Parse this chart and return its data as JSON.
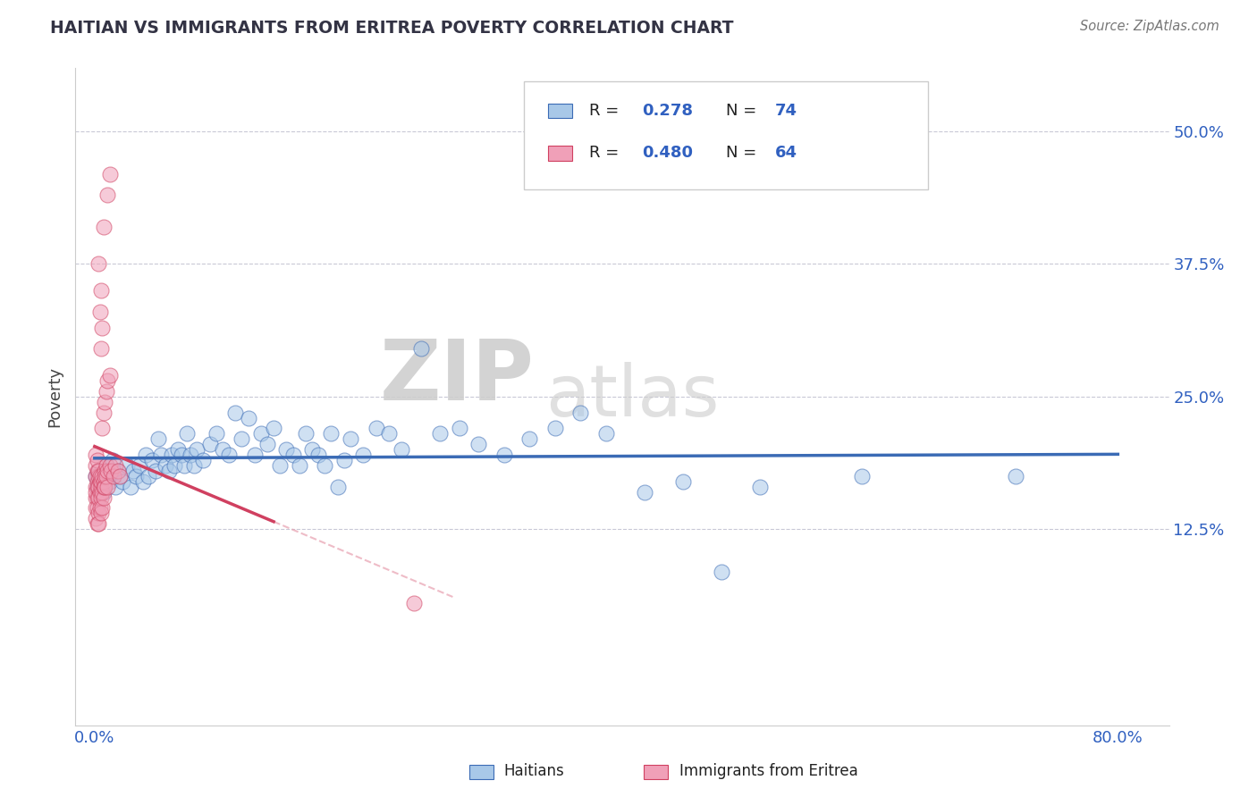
{
  "title": "HAITIAN VS IMMIGRANTS FROM ERITREA POVERTY CORRELATION CHART",
  "source": "Source: ZipAtlas.com",
  "xlabel_ticks": [
    "0.0%",
    "",
    "",
    "",
    "80.0%"
  ],
  "xlabel_tick_vals": [
    0.0,
    0.2,
    0.4,
    0.6,
    0.8
  ],
  "ylabel_ticks": [
    "12.5%",
    "25.0%",
    "37.5%",
    "50.0%"
  ],
  "ylabel_tick_vals": [
    0.125,
    0.25,
    0.375,
    0.5
  ],
  "ylabel": "Poverty",
  "xlim": [
    -0.015,
    0.84
  ],
  "ylim": [
    -0.06,
    0.56
  ],
  "legend_r1": "0.278",
  "legend_n1": "74",
  "legend_r2": "0.480",
  "legend_n2": "64",
  "watermark_zip": "ZIP",
  "watermark_atlas": "atlas",
  "blue_color": "#A8C8E8",
  "pink_color": "#F0A0B8",
  "blue_line_color": "#3B6BB5",
  "pink_line_color": "#D04060",
  "pink_dash_color": "#E8A0B0",
  "blue_scatter": [
    [
      0.001,
      0.175
    ],
    [
      0.002,
      0.165
    ],
    [
      0.003,
      0.18
    ],
    [
      0.005,
      0.17
    ],
    [
      0.007,
      0.16
    ],
    [
      0.009,
      0.185
    ],
    [
      0.01,
      0.175
    ],
    [
      0.012,
      0.17
    ],
    [
      0.014,
      0.19
    ],
    [
      0.016,
      0.165
    ],
    [
      0.018,
      0.18
    ],
    [
      0.02,
      0.175
    ],
    [
      0.022,
      0.17
    ],
    [
      0.025,
      0.185
    ],
    [
      0.028,
      0.165
    ],
    [
      0.03,
      0.18
    ],
    [
      0.032,
      0.175
    ],
    [
      0.035,
      0.185
    ],
    [
      0.038,
      0.17
    ],
    [
      0.04,
      0.195
    ],
    [
      0.042,
      0.175
    ],
    [
      0.045,
      0.19
    ],
    [
      0.048,
      0.18
    ],
    [
      0.05,
      0.21
    ],
    [
      0.052,
      0.195
    ],
    [
      0.055,
      0.185
    ],
    [
      0.058,
      0.18
    ],
    [
      0.06,
      0.195
    ],
    [
      0.062,
      0.185
    ],
    [
      0.065,
      0.2
    ],
    [
      0.068,
      0.195
    ],
    [
      0.07,
      0.185
    ],
    [
      0.072,
      0.215
    ],
    [
      0.075,
      0.195
    ],
    [
      0.078,
      0.185
    ],
    [
      0.08,
      0.2
    ],
    [
      0.085,
      0.19
    ],
    [
      0.09,
      0.205
    ],
    [
      0.095,
      0.215
    ],
    [
      0.1,
      0.2
    ],
    [
      0.105,
      0.195
    ],
    [
      0.11,
      0.235
    ],
    [
      0.115,
      0.21
    ],
    [
      0.12,
      0.23
    ],
    [
      0.125,
      0.195
    ],
    [
      0.13,
      0.215
    ],
    [
      0.135,
      0.205
    ],
    [
      0.14,
      0.22
    ],
    [
      0.145,
      0.185
    ],
    [
      0.15,
      0.2
    ],
    [
      0.155,
      0.195
    ],
    [
      0.16,
      0.185
    ],
    [
      0.165,
      0.215
    ],
    [
      0.17,
      0.2
    ],
    [
      0.175,
      0.195
    ],
    [
      0.18,
      0.185
    ],
    [
      0.185,
      0.215
    ],
    [
      0.19,
      0.165
    ],
    [
      0.195,
      0.19
    ],
    [
      0.2,
      0.21
    ],
    [
      0.21,
      0.195
    ],
    [
      0.22,
      0.22
    ],
    [
      0.23,
      0.215
    ],
    [
      0.24,
      0.2
    ],
    [
      0.255,
      0.295
    ],
    [
      0.27,
      0.215
    ],
    [
      0.285,
      0.22
    ],
    [
      0.3,
      0.205
    ],
    [
      0.32,
      0.195
    ],
    [
      0.34,
      0.21
    ],
    [
      0.36,
      0.22
    ],
    [
      0.38,
      0.235
    ],
    [
      0.4,
      0.215
    ],
    [
      0.43,
      0.16
    ],
    [
      0.46,
      0.17
    ],
    [
      0.49,
      0.085
    ],
    [
      0.52,
      0.165
    ],
    [
      0.6,
      0.175
    ],
    [
      0.72,
      0.175
    ]
  ],
  "pink_scatter": [
    [
      0.001,
      0.175
    ],
    [
      0.001,
      0.165
    ],
    [
      0.001,
      0.185
    ],
    [
      0.001,
      0.195
    ],
    [
      0.001,
      0.155
    ],
    [
      0.001,
      0.145
    ],
    [
      0.001,
      0.135
    ],
    [
      0.001,
      0.16
    ],
    [
      0.002,
      0.18
    ],
    [
      0.002,
      0.17
    ],
    [
      0.002,
      0.19
    ],
    [
      0.002,
      0.165
    ],
    [
      0.002,
      0.155
    ],
    [
      0.002,
      0.145
    ],
    [
      0.002,
      0.13
    ],
    [
      0.003,
      0.175
    ],
    [
      0.003,
      0.165
    ],
    [
      0.003,
      0.18
    ],
    [
      0.003,
      0.155
    ],
    [
      0.003,
      0.14
    ],
    [
      0.003,
      0.13
    ],
    [
      0.004,
      0.17
    ],
    [
      0.004,
      0.16
    ],
    [
      0.004,
      0.175
    ],
    [
      0.004,
      0.145
    ],
    [
      0.005,
      0.165
    ],
    [
      0.005,
      0.155
    ],
    [
      0.005,
      0.17
    ],
    [
      0.005,
      0.14
    ],
    [
      0.006,
      0.175
    ],
    [
      0.006,
      0.16
    ],
    [
      0.006,
      0.145
    ],
    [
      0.007,
      0.17
    ],
    [
      0.007,
      0.155
    ],
    [
      0.007,
      0.165
    ],
    [
      0.008,
      0.18
    ],
    [
      0.008,
      0.165
    ],
    [
      0.008,
      0.175
    ],
    [
      0.009,
      0.185
    ],
    [
      0.009,
      0.175
    ],
    [
      0.01,
      0.18
    ],
    [
      0.01,
      0.165
    ],
    [
      0.012,
      0.185
    ],
    [
      0.013,
      0.18
    ],
    [
      0.015,
      0.175
    ],
    [
      0.016,
      0.185
    ],
    [
      0.018,
      0.18
    ],
    [
      0.02,
      0.175
    ],
    [
      0.006,
      0.22
    ],
    [
      0.007,
      0.235
    ],
    [
      0.008,
      0.245
    ],
    [
      0.009,
      0.255
    ],
    [
      0.01,
      0.265
    ],
    [
      0.012,
      0.27
    ],
    [
      0.005,
      0.295
    ],
    [
      0.006,
      0.315
    ],
    [
      0.004,
      0.33
    ],
    [
      0.005,
      0.35
    ],
    [
      0.003,
      0.375
    ],
    [
      0.007,
      0.41
    ],
    [
      0.01,
      0.44
    ],
    [
      0.012,
      0.46
    ],
    [
      0.25,
      0.055
    ]
  ]
}
